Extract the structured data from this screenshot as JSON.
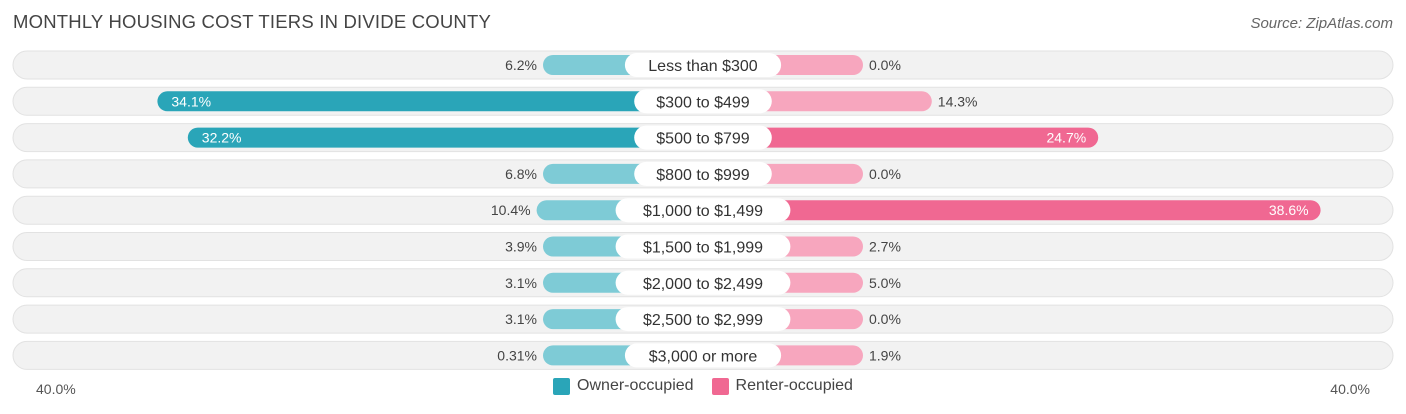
{
  "header": {
    "title": "MONTHLY HOUSING COST TIERS IN DIVIDE COUNTY",
    "source": "Source: ZipAtlas.com"
  },
  "colors": {
    "owner_strong": "#2aa5b8",
    "owner_light": "#7ecbd6",
    "renter_strong": "#f06892",
    "renter_light": "#f7a6be",
    "row_bg": "#f2f2f2",
    "row_border": "#e2e2e2"
  },
  "legend": {
    "owner": "Owner-occupied",
    "renter": "Renter-occupied"
  },
  "axis": {
    "left_label": "40.0%",
    "right_label": "40.0%"
  },
  "chart_data": {
    "type": "bar",
    "orientation": "horizontal-diverging",
    "title": "MONTHLY HOUSING COST TIERS IN DIVIDE COUNTY",
    "xlim": [
      -40,
      40
    ],
    "categories": [
      "Less than $300",
      "$300 to $499",
      "$500 to $799",
      "$800 to $999",
      "$1,000 to $1,499",
      "$1,500 to $1,999",
      "$2,000 to $2,499",
      "$2,500 to $2,999",
      "$3,000 or more"
    ],
    "series": [
      {
        "name": "Owner-occupied",
        "values": [
          6.2,
          34.1,
          32.2,
          6.8,
          10.4,
          3.9,
          3.1,
          3.1,
          0.31
        ],
        "labels": [
          "6.2%",
          "34.1%",
          "32.2%",
          "6.8%",
          "10.4%",
          "3.9%",
          "3.1%",
          "3.1%",
          "0.31%"
        ]
      },
      {
        "name": "Renter-occupied",
        "values": [
          0.0,
          14.3,
          24.7,
          0.0,
          38.6,
          2.7,
          5.0,
          0.0,
          1.9
        ],
        "labels": [
          "0.0%",
          "14.3%",
          "24.7%",
          "0.0%",
          "38.6%",
          "2.7%",
          "5.0%",
          "0.0%",
          "1.9%"
        ]
      }
    ],
    "legend_position": "bottom-center"
  }
}
